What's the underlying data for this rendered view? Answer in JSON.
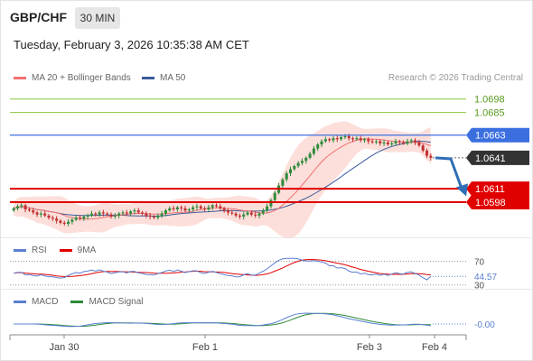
{
  "header": {
    "symbol": "GBP/CHF",
    "timeframe": "30 MIN",
    "datetime": "Tuesday, February 3, 2026 10:35:38 AM CET"
  },
  "legend": {
    "ma20": "MA 20 + Bollinger Bands",
    "ma50": "MA 50",
    "copyright": "Research © 2026 Trading Central"
  },
  "colors": {
    "ma20": "#f07070",
    "ma50": "#3a5a9a",
    "bands": "#fbd4cf",
    "up": "#2e8b3a",
    "down": "#c23030",
    "resistance_green": "#8cc63f",
    "pivot_blue": "#3b6fe0",
    "support_red": "#e00000",
    "current_price": "#333333",
    "rsi": "#5b7fd0",
    "rsi_ma": "#e00000",
    "macd": "#5b7fd0",
    "macd_signal": "#2e8b3a"
  },
  "chart_data": [
    {
      "type": "candlestick",
      "title": "GBP/CHF 30 MIN",
      "ylim": [
        1.057,
        1.071
      ],
      "x_ticks": [
        "Jan 30",
        "Feb 1",
        "Feb 3",
        "Feb 4"
      ],
      "levels": [
        {
          "value": 1.0698,
          "label": "1.0698",
          "role": "resistance"
        },
        {
          "value": 1.0685,
          "label": "1.0685",
          "role": "resistance"
        },
        {
          "value": 1.0663,
          "label": "1.0663",
          "role": "pivot"
        },
        {
          "value": 1.0641,
          "label": "1.0641",
          "role": "last"
        },
        {
          "value": 1.0611,
          "label": "1.0611",
          "role": "support"
        },
        {
          "value": 1.0598,
          "label": "1.0598",
          "role": "support"
        }
      ],
      "forecast_arrow": [
        1.0641,
        1.064,
        1.0609
      ],
      "close": [
        1.0592,
        1.0594,
        1.0595,
        1.0591,
        1.059,
        1.0588,
        1.0586,
        1.0587,
        1.0585,
        1.0583,
        1.0582,
        1.058,
        1.0578,
        1.0577,
        1.0579,
        1.0581,
        1.0583,
        1.0582,
        1.0584,
        1.0585,
        1.0587,
        1.0586,
        1.0588,
        1.0587,
        1.0586,
        1.0584,
        1.0585,
        1.0587,
        1.0588,
        1.0587,
        1.0589,
        1.059,
        1.0588,
        1.0587,
        1.0585,
        1.0584,
        1.0583,
        1.0585,
        1.0587,
        1.059,
        1.0592,
        1.0591,
        1.0593,
        1.0592,
        1.059,
        1.0591,
        1.0593,
        1.0594,
        1.0592,
        1.0591,
        1.0593,
        1.0595,
        1.0594,
        1.0592,
        1.059,
        1.0588,
        1.0587,
        1.0585,
        1.0584,
        1.0586,
        1.0588,
        1.0586,
        1.0585,
        1.0587,
        1.059,
        1.0594,
        1.06,
        1.0607,
        1.0614,
        1.062,
        1.0626,
        1.063,
        1.0633,
        1.0636,
        1.0638,
        1.0641,
        1.0645,
        1.065,
        1.0654,
        1.0657,
        1.0659,
        1.0658,
        1.066,
        1.0659,
        1.0661,
        1.0662,
        1.066,
        1.0659,
        1.066,
        1.0658,
        1.0659,
        1.0657,
        1.0656,
        1.0657,
        1.0655,
        1.0656,
        1.0654,
        1.0655,
        1.0657,
        1.0656,
        1.0655,
        1.0657,
        1.0658,
        1.0656,
        1.0653,
        1.0648,
        1.0643,
        1.0641
      ]
    },
    {
      "type": "line",
      "title": "RSI",
      "series": [
        {
          "name": "RSI"
        },
        {
          "name": "9MA"
        }
      ],
      "ylim": [
        25,
        80
      ],
      "levels": [
        {
          "value": 70,
          "label": "70"
        },
        {
          "value": 30,
          "label": "30"
        }
      ],
      "last_value": 44.57,
      "last_label": "44.57"
    },
    {
      "type": "line",
      "title": "MACD",
      "series": [
        {
          "name": "MACD"
        },
        {
          "name": "MACD Signal"
        }
      ],
      "last_value": 0.0,
      "last_label": "-0.00"
    }
  ],
  "rsi_legend": {
    "a": "RSI",
    "b": "9MA"
  },
  "macd_legend": {
    "a": "MACD",
    "b": "MACD Signal"
  }
}
